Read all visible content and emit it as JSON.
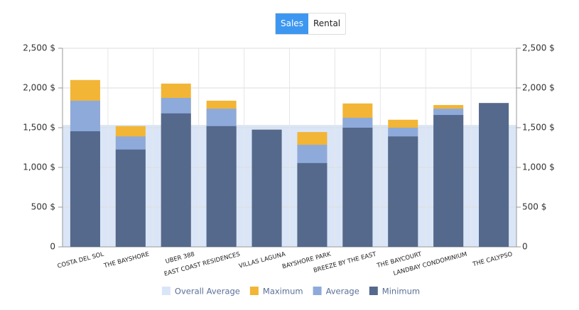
{
  "toggle": {
    "options": [
      "Sales",
      "Rental"
    ],
    "active": 0
  },
  "chart_data": {
    "type": "bar",
    "mode": "overlay",
    "categories": [
      "COSTA DEL SOL",
      "THE BAYSHORE",
      "UBER 388",
      "EAST COAST RESIDENCES",
      "VILLAS LAGUNA",
      "BAYSHORE PARK",
      "BREEZE BY THE EAST",
      "THE BAYCOURT",
      "LANDBAY CONDOMINIUM",
      "THE CALYPSO"
    ],
    "reference_band": {
      "name": "Overall Average",
      "color": "#dae6f7",
      "value": 1535
    },
    "series": [
      {
        "name": "Maximum",
        "color": "#f2b535",
        "values": [
          2100,
          1520,
          2055,
          1840,
          1475,
          1445,
          1805,
          1600,
          1785,
          1810
        ]
      },
      {
        "name": "Average",
        "color": "#8eaadb",
        "values": [
          1840,
          1390,
          1875,
          1740,
          1475,
          1285,
          1625,
          1500,
          1740,
          1810
        ]
      },
      {
        "name": "Minimum",
        "color": "#55698c",
        "values": [
          1455,
          1225,
          1680,
          1520,
          1475,
          1055,
          1500,
          1390,
          1660,
          1810
        ]
      }
    ],
    "ylim": [
      0,
      2500
    ],
    "yticks": [
      0,
      {
        "value": 500,
        "label": "500 $"
      },
      {
        "value": 1000,
        "label": "1,000 $"
      },
      {
        "value": 1500,
        "label": "1,500 $"
      },
      {
        "value": 2000,
        "label": "2,000 $"
      },
      {
        "value": 2500,
        "label": "2,500 $"
      }
    ],
    "y2lim": [
      0,
      2500
    ],
    "y2ticks": [
      0,
      {
        "value": 500,
        "label": "500 $"
      },
      {
        "value": 1000,
        "label": "1,000 $"
      },
      {
        "value": 1500,
        "label": "1,500 $"
      },
      {
        "value": 2000,
        "label": "2,000 $"
      },
      {
        "value": 2500,
        "label": "2,500 $"
      }
    ],
    "grid": true
  }
}
